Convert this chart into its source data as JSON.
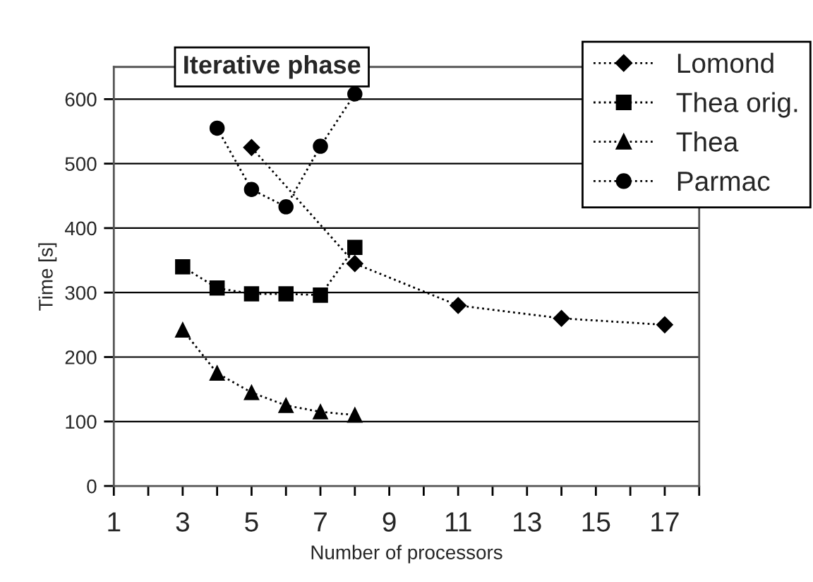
{
  "chart_data": {
    "type": "line",
    "title": "Iterative phase",
    "xlabel": "Number of processors",
    "ylabel": "Time [s]",
    "xlim": [
      1,
      18
    ],
    "ylim": [
      0,
      650
    ],
    "xticks": [
      1,
      {
        "value": 2,
        "label": null
      },
      3,
      {
        "value": 4,
        "label": null
      },
      5,
      {
        "value": 6,
        "label": null
      },
      7,
      {
        "value": 8,
        "label": null
      },
      9,
      {
        "value": 10,
        "label": null
      },
      11,
      {
        "value": 12,
        "label": null
      },
      13,
      {
        "value": 14,
        "label": null
      },
      15,
      {
        "value": 16,
        "label": null
      },
      17,
      {
        "value": 18,
        "label": null
      }
    ],
    "yticks": [
      0,
      100,
      200,
      300,
      400,
      500,
      600
    ],
    "grid": "y",
    "legend": "top right",
    "line_style": "dotted",
    "series": [
      {
        "name": "Lomond",
        "color": "#000000",
        "marker": "diamond",
        "x": [
          5,
          8,
          11,
          14,
          17
        ],
        "values": [
          525,
          345,
          280,
          260,
          250
        ]
      },
      {
        "name": "Thea orig.",
        "color": "#000000",
        "marker": "square",
        "x": [
          3,
          4,
          5,
          6,
          7,
          8
        ],
        "values": [
          340,
          307,
          298,
          298,
          296,
          370
        ]
      },
      {
        "name": "Thea",
        "color": "#000000",
        "marker": "triangle",
        "x": [
          3,
          4,
          5,
          6,
          7,
          8
        ],
        "values": [
          242,
          175,
          145,
          125,
          115,
          110
        ]
      },
      {
        "name": "Parmac",
        "color": "#000000",
        "marker": "circle",
        "x": [
          4,
          5,
          6,
          7,
          8
        ],
        "values": [
          555,
          460,
          433,
          527,
          608
        ]
      }
    ]
  }
}
